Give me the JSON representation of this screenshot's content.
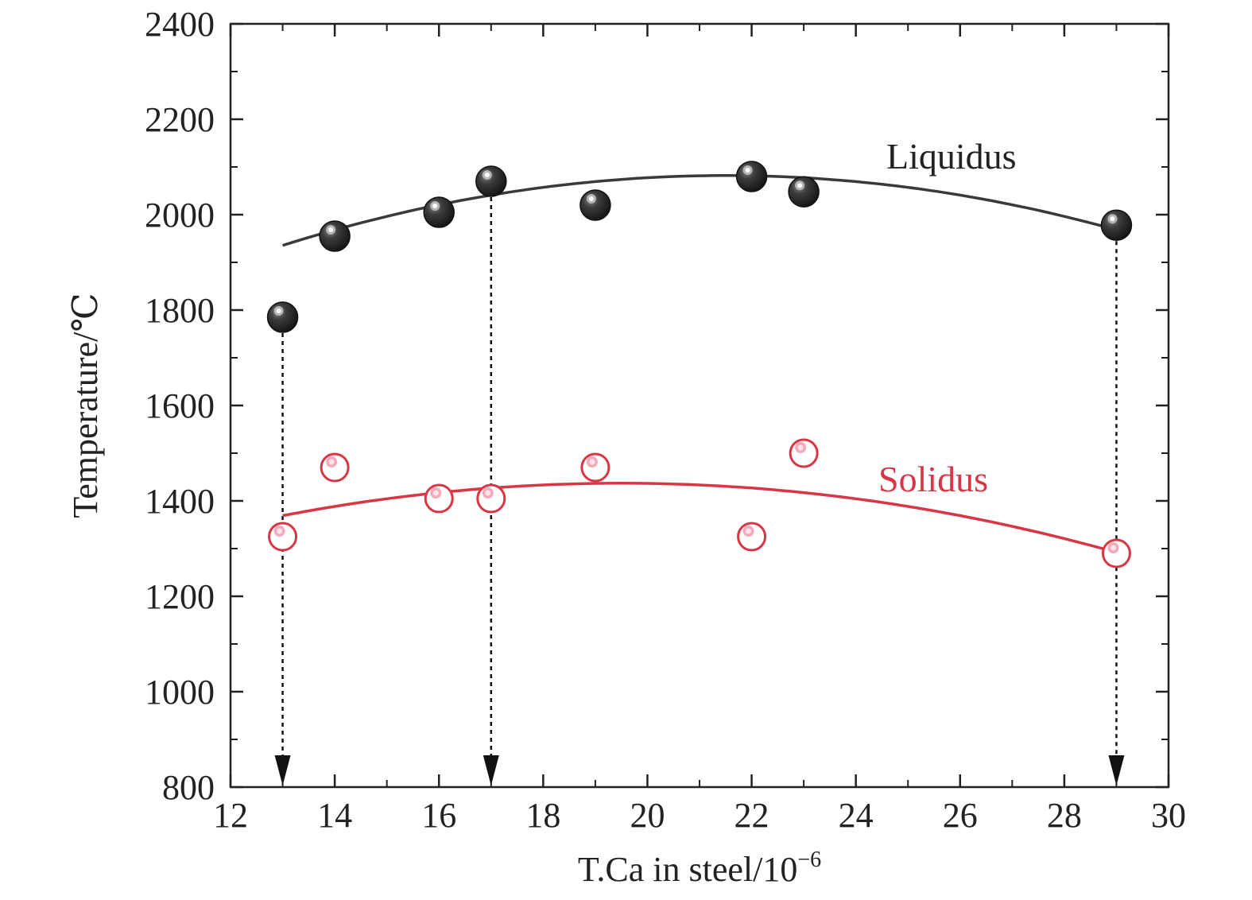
{
  "chart_data": {
    "type": "scatter",
    "xlabel": "T.Ca in steel/10",
    "xlabel_sup": "−6",
    "ylabel": "Temperature/℃",
    "xlim": [
      12,
      30
    ],
    "ylim": [
      800,
      2400
    ],
    "xticks": [
      12,
      14,
      16,
      18,
      20,
      22,
      24,
      26,
      28,
      30
    ],
    "yticks": [
      800,
      1000,
      1200,
      1400,
      1600,
      1800,
      2000,
      2200,
      2400
    ],
    "grid": false,
    "series": [
      {
        "name": "Liquidus",
        "color": "#3a3a3a",
        "marker": "filled-sphere",
        "x": [
          13,
          14,
          16,
          17,
          19,
          22,
          23,
          29
        ],
        "y": [
          1785,
          1955,
          2005,
          2070,
          2020,
          2080,
          2048,
          1978
        ],
        "fit": {
          "x_start": 13,
          "x_end": 29,
          "peak_x": 21.5,
          "peak_y": 2082,
          "end_y": 1968
        }
      },
      {
        "name": "Solidus",
        "color": "#d93645",
        "marker": "open-circle",
        "x": [
          13,
          14,
          16,
          17,
          19,
          22,
          23,
          29
        ],
        "y": [
          1325,
          1470,
          1405,
          1405,
          1470,
          1325,
          1500,
          1290
        ],
        "fit": {
          "x_start": 13,
          "x_end": 29,
          "peak_x": 19.5,
          "peak_y": 1437,
          "end_y": 1292
        }
      }
    ],
    "annotations": [
      {
        "type": "dashed-arrow",
        "x": 13,
        "from_y": 1785,
        "to_y": 800
      },
      {
        "type": "dashed-arrow",
        "x": 17,
        "from_y": 2070,
        "to_y": 800
      },
      {
        "type": "dashed-arrow",
        "x": 29,
        "from_y": 1978,
        "to_y": 800
      }
    ]
  }
}
